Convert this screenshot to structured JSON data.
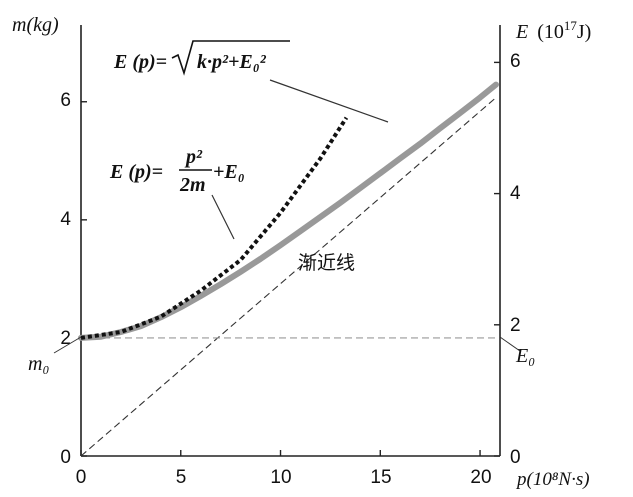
{
  "chart_data": {
    "type": "line",
    "title": "",
    "xlabel": "p(10⁸N·s)",
    "ylabel_left": "m(kg)",
    "ylabel_right": "E (10¹⁷J)",
    "xlim": [
      0,
      21
    ],
    "ylim_left": [
      0,
      7.3
    ],
    "ylim_right": [
      0,
      6.57
    ],
    "x_ticks": [
      "0",
      "5",
      "10",
      "15",
      "20"
    ],
    "y_left_ticks": [
      "0",
      "2",
      "4",
      "6"
    ],
    "y_right_ticks": [
      "0",
      "2",
      "4",
      "6"
    ],
    "grid": false,
    "m0": 2,
    "series": [
      {
        "name": "E (p)=√(k·p²+E₀²)",
        "style": "solid-thick-gray",
        "color": "#999999",
        "x": [
          0,
          1,
          2,
          3,
          4,
          5,
          6,
          7,
          8,
          9,
          10,
          11,
          12,
          13,
          14,
          15,
          16,
          17,
          18,
          19,
          20,
          20.8
        ],
        "y": [
          2.0,
          2.02,
          2.1,
          2.2,
          2.35,
          2.52,
          2.71,
          2.91,
          3.12,
          3.34,
          3.57,
          3.81,
          4.05,
          4.29,
          4.54,
          4.79,
          5.04,
          5.29,
          5.55,
          5.81,
          6.07,
          6.29
        ]
      },
      {
        "name": "E (p)=p²/2m+E₀",
        "style": "dotted-black",
        "color": "#111111",
        "x": [
          0,
          2,
          4,
          6,
          8,
          10,
          12,
          13.3
        ],
        "y": [
          2.0,
          2.1,
          2.36,
          2.8,
          3.32,
          4.12,
          5.04,
          5.73
        ]
      },
      {
        "name": "渐近线",
        "style": "dashed-thin",
        "color": "#333333",
        "x": [
          0,
          20.8
        ],
        "y": [
          0,
          6.07
        ]
      },
      {
        "name": "E₀",
        "style": "dashed-thin-gray",
        "color": "#999999",
        "x": [
          0,
          20.8
        ],
        "y": [
          2.0,
          2.0
        ]
      }
    ],
    "annotations": {
      "sqrt_formula_lhs": "E (p)=",
      "sqrt_formula_body": "k·p²+E₀²",
      "frac_formula_lhs": "E (p)=",
      "frac_numerator": "p²",
      "frac_denominator": "2m",
      "frac_rhs": "+E₀",
      "asymptote_label": "渐近线",
      "m0_label": "m₀",
      "e0_label": "E₀",
      "right_label_e": "E",
      "right_label_unit_base": "(10",
      "right_label_unit_exp": "17",
      "right_label_unit_tail": "J)"
    }
  }
}
